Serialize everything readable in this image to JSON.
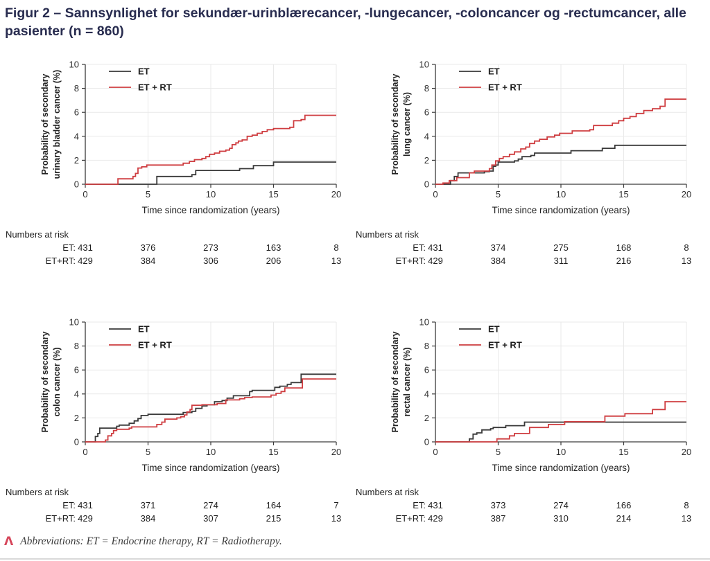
{
  "title": {
    "text": "Figur 2 – Sannsynlighet for sekundær-urinblærecancer, -lungecancer, -coloncancer og -rectumcancer, alle pasienter (n = 860)"
  },
  "footer": {
    "icon": "logo-caret",
    "text": "Abbreviations: ET = Endocrine therapy, RT = Radiotherapy."
  },
  "risk_header": "Numbers at risk",
  "legend": {
    "et": "ET",
    "etrt": "ET + RT",
    "position": "top-left-inside"
  },
  "axis": {
    "x_label": "Time since randomization (years)",
    "x_ticks": [
      0,
      5,
      10,
      15,
      20
    ],
    "y_ticks": [
      0,
      2,
      4,
      6,
      8,
      10
    ],
    "x_range": [
      0,
      20
    ],
    "y_range": [
      0,
      10
    ],
    "grid": true
  },
  "colors": {
    "title": "#282c4f",
    "et": "#3a3a3a",
    "etrt": "#cf3e41",
    "grid": "#e9e9e9",
    "axis": "#3a3a3a",
    "tick_text": "#2f2f2f",
    "footer_icon": "#d6465a"
  },
  "chart_data": [
    {
      "key": "bladder",
      "type": "line",
      "step": "hv",
      "title": "",
      "xlabel": "Time since randomization (years)",
      "ylabel_line1": "Probability of secondary",
      "ylabel_line2": "urinary bladder cancer (%)",
      "xlim": [
        0,
        20
      ],
      "ylim": [
        0,
        10
      ],
      "series": [
        {
          "name": "ET",
          "color_key": "et",
          "steps": [
            [
              5.7,
              0.65
            ],
            [
              8.5,
              0.8
            ],
            [
              8.8,
              1.15
            ],
            [
              12.3,
              1.3
            ],
            [
              13.4,
              1.55
            ],
            [
              15.0,
              1.85
            ]
          ]
        },
        {
          "name": "ET + RT",
          "color_key": "etrt",
          "steps": [
            [
              2.6,
              0.45
            ],
            [
              3.8,
              0.65
            ],
            [
              4.0,
              0.9
            ],
            [
              4.2,
              1.35
            ],
            [
              4.5,
              1.45
            ],
            [
              4.9,
              1.6
            ],
            [
              7.8,
              1.75
            ],
            [
              8.3,
              1.9
            ],
            [
              8.7,
              2.05
            ],
            [
              9.3,
              2.15
            ],
            [
              9.6,
              2.3
            ],
            [
              9.9,
              2.5
            ],
            [
              10.3,
              2.6
            ],
            [
              10.7,
              2.75
            ],
            [
              11.2,
              2.85
            ],
            [
              11.5,
              3.0
            ],
            [
              11.7,
              3.3
            ],
            [
              12.0,
              3.45
            ],
            [
              12.2,
              3.6
            ],
            [
              12.5,
              3.7
            ],
            [
              12.9,
              4.0
            ],
            [
              13.3,
              4.1
            ],
            [
              13.7,
              4.25
            ],
            [
              14.1,
              4.4
            ],
            [
              14.5,
              4.55
            ],
            [
              15.0,
              4.65
            ],
            [
              16.3,
              4.75
            ],
            [
              16.6,
              5.3
            ],
            [
              17.2,
              5.4
            ],
            [
              17.5,
              5.75
            ]
          ]
        }
      ],
      "numbers_at_risk": {
        "times": [
          0,
          5,
          10,
          15,
          20
        ],
        "rows": [
          {
            "label": "ET:",
            "values": [
              "431",
              "376",
              "273",
              "163",
              "8"
            ]
          },
          {
            "label": "ET+RT:",
            "values": [
              "429",
              "384",
              "306",
              "206",
              "13"
            ]
          }
        ]
      }
    },
    {
      "key": "lung",
      "type": "line",
      "step": "hv",
      "title": "",
      "xlabel": "Time since randomization (years)",
      "ylabel_line1": "Probability of secondary",
      "ylabel_line2": "lung cancer (%)",
      "xlim": [
        0,
        20
      ],
      "ylim": [
        0,
        10
      ],
      "series": [
        {
          "name": "ET",
          "color_key": "et",
          "steps": [
            [
              1.2,
              0.3
            ],
            [
              1.5,
              0.65
            ],
            [
              1.8,
              0.95
            ],
            [
              3.9,
              1.05
            ],
            [
              4.3,
              1.1
            ],
            [
              4.6,
              1.5
            ],
            [
              4.8,
              1.6
            ],
            [
              5.0,
              1.85
            ],
            [
              6.3,
              1.95
            ],
            [
              6.6,
              2.1
            ],
            [
              6.9,
              2.3
            ],
            [
              7.6,
              2.4
            ],
            [
              7.9,
              2.6
            ],
            [
              10.8,
              2.8
            ],
            [
              13.3,
              3.0
            ],
            [
              14.3,
              3.25
            ]
          ]
        },
        {
          "name": "ET + RT",
          "color_key": "etrt",
          "steps": [
            [
              0.6,
              0.1
            ],
            [
              1.1,
              0.3
            ],
            [
              1.7,
              0.55
            ],
            [
              2.7,
              0.95
            ],
            [
              3.1,
              1.1
            ],
            [
              4.3,
              1.3
            ],
            [
              4.5,
              1.6
            ],
            [
              4.8,
              1.95
            ],
            [
              5.1,
              2.15
            ],
            [
              5.4,
              2.3
            ],
            [
              5.9,
              2.5
            ],
            [
              6.3,
              2.7
            ],
            [
              6.8,
              2.95
            ],
            [
              7.2,
              3.1
            ],
            [
              7.5,
              3.4
            ],
            [
              7.9,
              3.6
            ],
            [
              8.3,
              3.75
            ],
            [
              8.9,
              3.95
            ],
            [
              9.5,
              4.1
            ],
            [
              9.9,
              4.25
            ],
            [
              10.9,
              4.45
            ],
            [
              12.3,
              4.55
            ],
            [
              12.6,
              4.9
            ],
            [
              14.1,
              5.1
            ],
            [
              14.6,
              5.3
            ],
            [
              15.0,
              5.5
            ],
            [
              15.5,
              5.65
            ],
            [
              16.0,
              5.9
            ],
            [
              16.6,
              6.15
            ],
            [
              17.3,
              6.3
            ],
            [
              17.9,
              6.5
            ],
            [
              18.3,
              7.1
            ]
          ]
        }
      ],
      "numbers_at_risk": {
        "times": [
          0,
          5,
          10,
          15,
          20
        ],
        "rows": [
          {
            "label": "ET:",
            "values": [
              "431",
              "374",
              "275",
              "168",
              "8"
            ]
          },
          {
            "label": "ET+RT:",
            "values": [
              "429",
              "384",
              "311",
              "216",
              "13"
            ]
          }
        ]
      }
    },
    {
      "key": "colon",
      "type": "line",
      "step": "hv",
      "title": "",
      "xlabel": "Time since randomization (years)",
      "ylabel_line1": "Probability of secondary",
      "ylabel_line2": "colon cancer (%)",
      "xlim": [
        0,
        20
      ],
      "ylim": [
        0,
        10
      ],
      "series": [
        {
          "name": "ET",
          "color_key": "et",
          "steps": [
            [
              0.8,
              0.45
            ],
            [
              1.0,
              0.7
            ],
            [
              1.15,
              1.15
            ],
            [
              2.5,
              1.3
            ],
            [
              2.7,
              1.4
            ],
            [
              3.5,
              1.55
            ],
            [
              3.9,
              1.75
            ],
            [
              4.2,
              1.95
            ],
            [
              4.45,
              2.2
            ],
            [
              5.0,
              2.3
            ],
            [
              7.8,
              2.45
            ],
            [
              8.5,
              2.55
            ],
            [
              8.8,
              2.8
            ],
            [
              9.3,
              3.0
            ],
            [
              9.7,
              3.1
            ],
            [
              10.3,
              3.35
            ],
            [
              10.9,
              3.45
            ],
            [
              11.3,
              3.65
            ],
            [
              11.8,
              3.85
            ],
            [
              13.1,
              4.2
            ],
            [
              13.3,
              4.3
            ],
            [
              15.1,
              4.55
            ],
            [
              15.5,
              4.65
            ],
            [
              16.1,
              4.8
            ],
            [
              16.4,
              4.95
            ],
            [
              17.2,
              5.65
            ]
          ]
        },
        {
          "name": "ET + RT",
          "color_key": "etrt",
          "steps": [
            [
              1.6,
              0.15
            ],
            [
              1.8,
              0.5
            ],
            [
              2.1,
              0.7
            ],
            [
              2.25,
              0.95
            ],
            [
              2.5,
              1.05
            ],
            [
              3.5,
              1.15
            ],
            [
              3.7,
              1.25
            ],
            [
              5.7,
              1.45
            ],
            [
              6.1,
              1.65
            ],
            [
              6.35,
              1.9
            ],
            [
              7.3,
              2.0
            ],
            [
              7.6,
              2.1
            ],
            [
              7.9,
              2.25
            ],
            [
              8.1,
              2.5
            ],
            [
              8.35,
              2.7
            ],
            [
              8.5,
              3.05
            ],
            [
              9.3,
              3.1
            ],
            [
              10.5,
              3.2
            ],
            [
              11.2,
              3.5
            ],
            [
              12.3,
              3.6
            ],
            [
              12.7,
              3.7
            ],
            [
              13.3,
              3.75
            ],
            [
              14.8,
              3.9
            ],
            [
              15.2,
              4.05
            ],
            [
              15.6,
              4.2
            ],
            [
              15.9,
              4.5
            ],
            [
              17.3,
              5.25
            ]
          ]
        }
      ],
      "numbers_at_risk": {
        "times": [
          0,
          5,
          10,
          15,
          20
        ],
        "rows": [
          {
            "label": "ET:",
            "values": [
              "431",
              "371",
              "274",
              "164",
              "7"
            ]
          },
          {
            "label": "ET+RT:",
            "values": [
              "429",
              "384",
              "307",
              "215",
              "13"
            ]
          }
        ]
      }
    },
    {
      "key": "rectal",
      "type": "line",
      "step": "hv",
      "title": "",
      "xlabel": "Time since randomization (years)",
      "ylabel_line1": "Probability of secondary",
      "ylabel_line2": "rectal cancer (%)",
      "xlim": [
        0,
        20
      ],
      "ylim": [
        0,
        10
      ],
      "series": [
        {
          "name": "ET",
          "color_key": "et",
          "steps": [
            [
              2.7,
              0.25
            ],
            [
              3.0,
              0.65
            ],
            [
              3.3,
              0.75
            ],
            [
              3.7,
              1.0
            ],
            [
              4.4,
              1.1
            ],
            [
              4.6,
              1.2
            ],
            [
              5.6,
              1.35
            ],
            [
              7.1,
              1.65
            ]
          ]
        },
        {
          "name": "ET + RT",
          "color_key": "etrt",
          "steps": [
            [
              4.9,
              0.25
            ],
            [
              5.9,
              0.5
            ],
            [
              6.3,
              0.7
            ],
            [
              7.5,
              1.2
            ],
            [
              9.0,
              1.45
            ],
            [
              10.3,
              1.68
            ],
            [
              13.5,
              2.15
            ],
            [
              15.1,
              2.35
            ],
            [
              17.3,
              2.7
            ],
            [
              18.3,
              3.35
            ]
          ]
        }
      ],
      "numbers_at_risk": {
        "times": [
          0,
          5,
          10,
          15,
          20
        ],
        "rows": [
          {
            "label": "ET:",
            "values": [
              "431",
              "373",
              "274",
              "166",
              "8"
            ]
          },
          {
            "label": "ET+RT:",
            "values": [
              "429",
              "387",
              "310",
              "214",
              "13"
            ]
          }
        ]
      }
    }
  ]
}
